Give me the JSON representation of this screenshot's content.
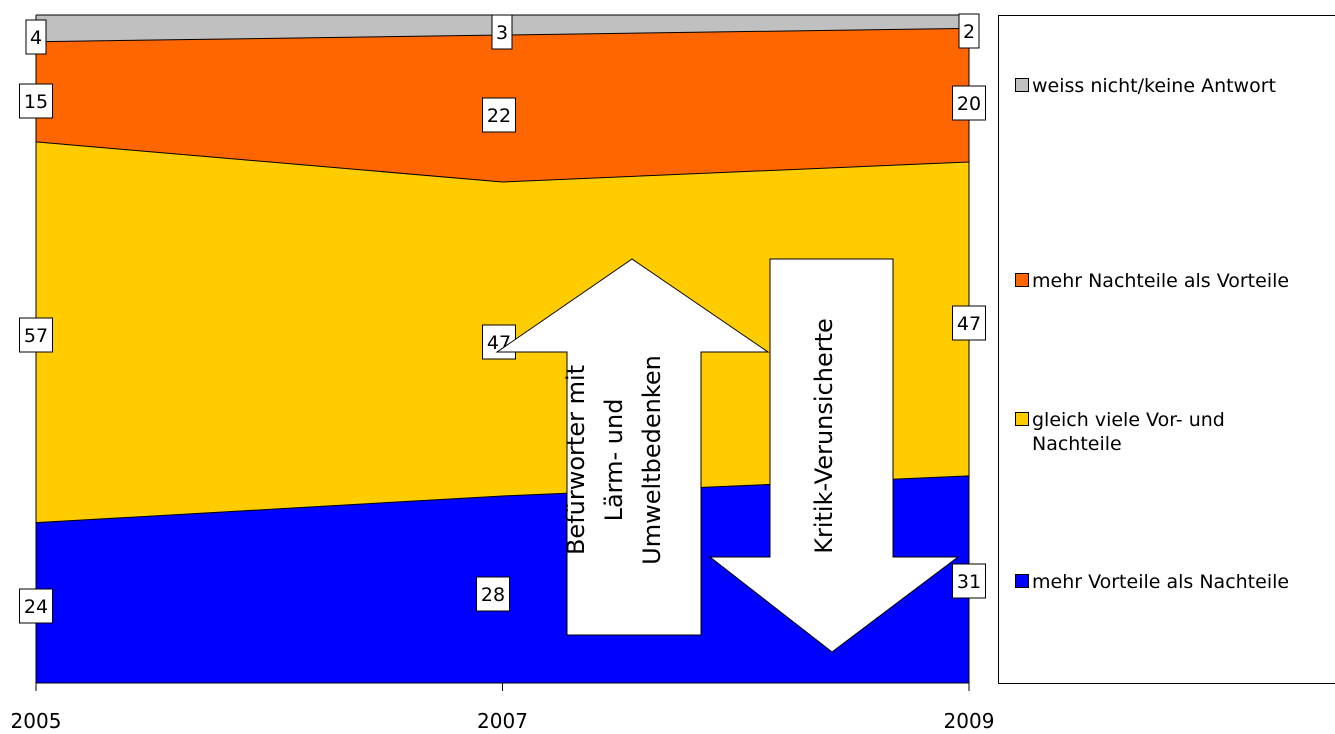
{
  "chart_data": {
    "type": "area",
    "stacked": true,
    "x": [
      "2005",
      "2007",
      "2009"
    ],
    "ylim": [
      0,
      100
    ],
    "grid": false,
    "legend_position": "right",
    "series": [
      {
        "name": "mehr Vorteile als Nachteile",
        "values": [
          24,
          28,
          31
        ],
        "color": "#0000FF"
      },
      {
        "name": "gleich viele Vor- und Nachteile",
        "values": [
          57,
          47,
          47
        ],
        "color": "#FFCC00"
      },
      {
        "name": "mehr Nachteile als Vorteile",
        "values": [
          15,
          22,
          20
        ],
        "color": "#FF6600"
      },
      {
        "name": "weiss nicht/keine Antwort",
        "values": [
          4,
          3,
          2
        ],
        "color": "#C0C0C0"
      }
    ],
    "annotations": [
      {
        "text": "Befürworter mit Lärm- und Umweltbedenken",
        "lines": [
          "Befürworter mit",
          "Lärm- und",
          "Umweltbedenken"
        ],
        "direction": "up"
      },
      {
        "text": "Kritik-Verunsicherte",
        "lines": [
          "Kritik-Verunsicherte"
        ],
        "direction": "down"
      }
    ]
  },
  "legend": {
    "items": [
      {
        "label": "weiss nicht/keine Antwort",
        "color": "#C0C0C0"
      },
      {
        "label": "mehr Nachteile als Vorteile",
        "color": "#FF6600"
      },
      {
        "label": "gleich viele Vor- und\nNachteile",
        "color": "#FFCC00"
      },
      {
        "label": "mehr Vorteile als Nachteile",
        "color": "#0000FF"
      }
    ]
  }
}
